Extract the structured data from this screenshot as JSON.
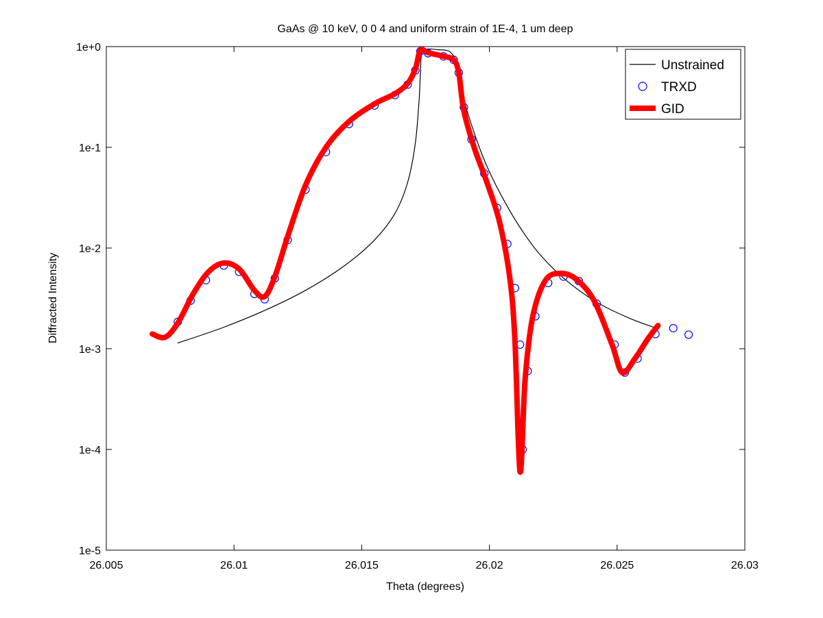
{
  "chart_data": {
    "type": "line",
    "title": "GaAs @ 10 keV,  0  0  4 and uniform strain of 1E-4, 1 um deep",
    "xlabel": "Theta (degrees)",
    "ylabel": "Diffracted Intensity",
    "xlim": [
      26.005,
      26.03
    ],
    "ylim": [
      1e-05,
      1
    ],
    "yscale": "log",
    "x_ticks": [
      26.005,
      26.01,
      26.015,
      26.02,
      26.025,
      26.03
    ],
    "x_tick_labels": [
      "26.005",
      "26.01",
      "26.015",
      "26.02",
      "26.025",
      "26.03"
    ],
    "y_ticks": [
      1e-05,
      0.0001,
      0.001,
      0.01,
      0.1,
      1
    ],
    "y_tick_labels": [
      "1e-5",
      "1e-4",
      "1e-3",
      "1e-2",
      "1e-1",
      "1e+0"
    ],
    "grid": false,
    "legend_position": "top-right",
    "series": [
      {
        "name": "Unstrained",
        "style": "line",
        "color": "#000000",
        "points": [
          [
            26.0078,
            0.00114
          ],
          [
            26.0095,
            0.0016
          ],
          [
            26.0112,
            0.0024
          ],
          [
            26.0128,
            0.0038
          ],
          [
            26.0143,
            0.0066
          ],
          [
            26.0155,
            0.012
          ],
          [
            26.0163,
            0.022
          ],
          [
            26.0168,
            0.045
          ],
          [
            26.0171,
            0.11
          ],
          [
            26.01725,
            0.3
          ],
          [
            26.0173,
            0.55
          ],
          [
            26.0174,
            0.9
          ],
          [
            26.018,
            0.93
          ],
          [
            26.0185,
            0.87
          ],
          [
            26.0188,
            0.6
          ],
          [
            26.019,
            0.3
          ],
          [
            26.0194,
            0.14
          ],
          [
            26.0199,
            0.065
          ],
          [
            26.0205,
            0.032
          ],
          [
            26.0212,
            0.016
          ],
          [
            26.022,
            0.0085
          ],
          [
            26.023,
            0.0048
          ],
          [
            26.0242,
            0.0029
          ],
          [
            26.0255,
            0.002
          ],
          [
            26.0266,
            0.00158
          ]
        ]
      },
      {
        "name": "TRXD",
        "style": "markers",
        "marker": "circle",
        "color": "#0000ff",
        "points": [
          [
            26.0078,
            0.00185
          ],
          [
            26.0083,
            0.003
          ],
          [
            26.0089,
            0.0048
          ],
          [
            26.0096,
            0.0067
          ],
          [
            26.0102,
            0.0058
          ],
          [
            26.0108,
            0.0035
          ],
          [
            26.0112,
            0.0031
          ],
          [
            26.0116,
            0.005
          ],
          [
            26.0121,
            0.012
          ],
          [
            26.0128,
            0.038
          ],
          [
            26.0136,
            0.09
          ],
          [
            26.0145,
            0.17
          ],
          [
            26.0155,
            0.26
          ],
          [
            26.0163,
            0.33
          ],
          [
            26.0168,
            0.42
          ],
          [
            26.0171,
            0.58
          ],
          [
            26.0173,
            0.9
          ],
          [
            26.0176,
            0.86
          ],
          [
            26.0182,
            0.8
          ],
          [
            26.0186,
            0.74
          ],
          [
            26.0188,
            0.55
          ],
          [
            26.019,
            0.25
          ],
          [
            26.0193,
            0.12
          ],
          [
            26.0198,
            0.055
          ],
          [
            26.0203,
            0.025
          ],
          [
            26.0207,
            0.011
          ],
          [
            26.021,
            0.004
          ],
          [
            26.0212,
            0.0011
          ],
          [
            26.0213,
            0.0001
          ],
          [
            26.0215,
            0.0006
          ],
          [
            26.0218,
            0.0021
          ],
          [
            26.0223,
            0.0045
          ],
          [
            26.0229,
            0.0052
          ],
          [
            26.0235,
            0.0047
          ],
          [
            26.0242,
            0.0028
          ],
          [
            26.0249,
            0.0011
          ],
          [
            26.0253,
            0.00058
          ],
          [
            26.0258,
            0.0008
          ],
          [
            26.0265,
            0.0014
          ],
          [
            26.0272,
            0.0016
          ],
          [
            26.0278,
            0.00138
          ]
        ]
      },
      {
        "name": "GID",
        "style": "thick-line",
        "color": "#ff0000",
        "points": [
          [
            26.0068,
            0.0014
          ],
          [
            26.0073,
            0.0013
          ],
          [
            26.0078,
            0.0018
          ],
          [
            26.0084,
            0.0035
          ],
          [
            26.009,
            0.0058
          ],
          [
            26.0096,
            0.0071
          ],
          [
            26.0102,
            0.0062
          ],
          [
            26.0108,
            0.0038
          ],
          [
            26.0112,
            0.0033
          ],
          [
            26.0116,
            0.0052
          ],
          [
            26.0121,
            0.013
          ],
          [
            26.0128,
            0.042
          ],
          [
            26.0136,
            0.1
          ],
          [
            26.0145,
            0.18
          ],
          [
            26.0155,
            0.27
          ],
          [
            26.0163,
            0.34
          ],
          [
            26.0168,
            0.43
          ],
          [
            26.0171,
            0.6
          ],
          [
            26.0173,
            0.92
          ],
          [
            26.0176,
            0.87
          ],
          [
            26.0182,
            0.8
          ],
          [
            26.0186,
            0.74
          ],
          [
            26.0188,
            0.55
          ],
          [
            26.019,
            0.23
          ],
          [
            26.0194,
            0.1
          ],
          [
            26.0199,
            0.045
          ],
          [
            26.0204,
            0.018
          ],
          [
            26.0208,
            0.005
          ],
          [
            26.021,
            0.0012
          ],
          [
            26.0212,
            6e-05
          ],
          [
            26.0214,
            0.0005
          ],
          [
            26.0217,
            0.0021
          ],
          [
            26.0222,
            0.0048
          ],
          [
            26.0228,
            0.0056
          ],
          [
            26.0234,
            0.0049
          ],
          [
            26.0241,
            0.003
          ],
          [
            26.0248,
            0.0011
          ],
          [
            26.0252,
            0.00058
          ],
          [
            26.0257,
            0.0008
          ],
          [
            26.0262,
            0.00125
          ],
          [
            26.0266,
            0.0017
          ]
        ]
      }
    ]
  }
}
